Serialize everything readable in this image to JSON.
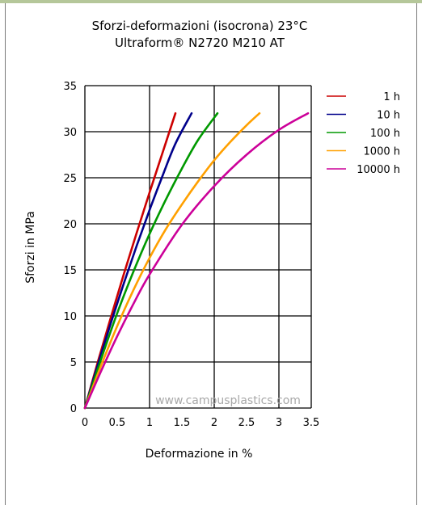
{
  "chart_data": {
    "type": "line",
    "title": "Sforzi-deformazioni (isocrona) 23°C",
    "subtitle": "Ultraform® N2720 M210 AT",
    "xlabel": "Deformazione in %",
    "ylabel": "Sforzi in MPa",
    "xlim": [
      0,
      3.5
    ],
    "ylim": [
      0,
      35
    ],
    "xticks": [
      "0",
      "0.5",
      "1",
      "1.5",
      "2",
      "2.5",
      "3",
      "3.5"
    ],
    "yticks": [
      "0",
      "5",
      "10",
      "15",
      "20",
      "25",
      "30",
      "35"
    ],
    "grid": true,
    "legend_position": "right",
    "watermark": "www.campusplastics.com",
    "series": [
      {
        "name": "1 h",
        "color": "#cc0000",
        "x": [
          0,
          0.2,
          0.4,
          0.6,
          0.8,
          1.0,
          1.2,
          1.4
        ],
        "y": [
          0,
          5.0,
          9.8,
          14.5,
          19.0,
          23.4,
          27.7,
          32.0
        ]
      },
      {
        "name": "10 h",
        "color": "#00008b",
        "x": [
          0,
          0.2,
          0.4,
          0.6,
          0.8,
          1.0,
          1.2,
          1.4,
          1.65
        ],
        "y": [
          0,
          4.7,
          9.2,
          13.5,
          17.6,
          21.5,
          25.2,
          28.7,
          32.0
        ]
      },
      {
        "name": "100 h",
        "color": "#009900",
        "x": [
          0,
          0.25,
          0.5,
          0.75,
          1.0,
          1.25,
          1.5,
          1.75,
          2.05
        ],
        "y": [
          0,
          5.3,
          10.3,
          14.8,
          18.9,
          22.6,
          26.0,
          29.1,
          32.0
        ]
      },
      {
        "name": "1000 h",
        "color": "#ffa000",
        "x": [
          0,
          0.25,
          0.5,
          0.75,
          1.0,
          1.25,
          1.5,
          1.75,
          2.0,
          2.25,
          2.5,
          2.7
        ],
        "y": [
          0,
          4.6,
          8.9,
          12.8,
          16.3,
          19.4,
          22.1,
          24.6,
          26.9,
          28.9,
          30.7,
          32.0
        ]
      },
      {
        "name": "10000 h",
        "color": "#cc0099",
        "x": [
          0,
          0.25,
          0.5,
          0.75,
          1.0,
          1.5,
          2.0,
          2.5,
          3.0,
          3.45
        ],
        "y": [
          0,
          4.0,
          7.8,
          11.3,
          14.5,
          19.9,
          24.1,
          27.5,
          30.2,
          32.0
        ]
      }
    ]
  }
}
